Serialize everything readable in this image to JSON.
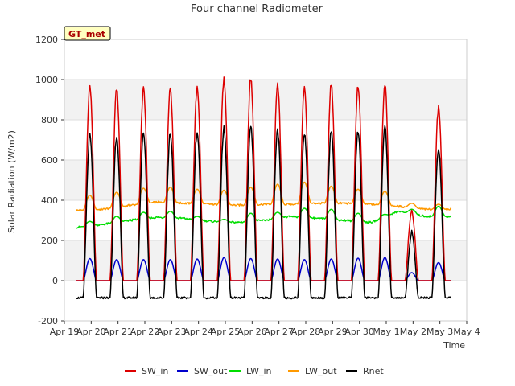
{
  "chart_data": {
    "type": "line",
    "title": "Four channel Radiometer",
    "xlabel": "Time",
    "ylabel": "Solar Radiation (W/m2)",
    "ylim": [
      -200,
      1200
    ],
    "xlim": [
      0,
      15
    ],
    "yticks": [
      -200,
      0,
      200,
      400,
      600,
      800,
      1000,
      1200
    ],
    "xtick_labels": [
      "Apr 19",
      "Apr 20",
      "Apr 21",
      "Apr 22",
      "Apr 23",
      "Apr 24",
      "Apr 25",
      "Apr 26",
      "Apr 27",
      "Apr 28",
      "Apr 29",
      "Apr 30",
      "May 1",
      "May 2",
      "May 3",
      "May 4"
    ],
    "site_label": "GT_met",
    "grid": true,
    "legend_position": "bottom",
    "series": [
      {
        "name": "SW_in",
        "color": "#dd0000",
        "day_peaks": [
          960,
          950,
          955,
          958,
          960,
          1000,
          1005,
          975,
          965,
          975,
          970,
          980,
          350,
          860
        ],
        "night_value": 0
      },
      {
        "name": "SW_out",
        "color": "#0000cc",
        "day_peaks": [
          110,
          105,
          105,
          105,
          108,
          115,
          110,
          108,
          105,
          108,
          112,
          115,
          40,
          90
        ],
        "night_value": 0
      },
      {
        "name": "LW_in",
        "color": "#00dd00",
        "day_peaks": [
          295,
          320,
          340,
          345,
          320,
          305,
          335,
          340,
          360,
          355,
          335,
          330,
          355,
          370
        ],
        "night_values": [
          265,
          280,
          300,
          315,
          310,
          295,
          290,
          300,
          320,
          310,
          300,
          290,
          345,
          320
        ]
      },
      {
        "name": "LW_out",
        "color": "#ff9900",
        "day_peaks": [
          425,
          440,
          460,
          465,
          455,
          450,
          465,
          480,
          490,
          470,
          455,
          445,
          385,
          380
        ],
        "night_values": [
          350,
          355,
          375,
          390,
          385,
          380,
          375,
          380,
          380,
          385,
          385,
          380,
          370,
          355
        ]
      },
      {
        "name": "Rnet",
        "color": "#000000",
        "day_peaks": [
          720,
          720,
          730,
          735,
          738,
          755,
          760,
          745,
          735,
          745,
          745,
          755,
          240,
          660
        ],
        "night_value": -85
      }
    ]
  }
}
